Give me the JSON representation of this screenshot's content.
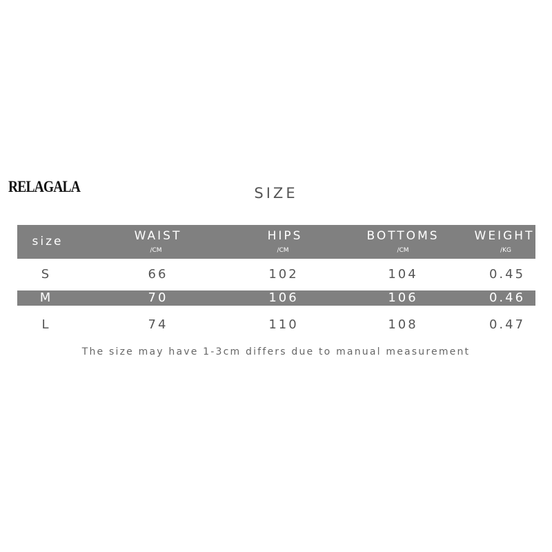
{
  "brand": "RELAGALA",
  "title": "SIZE",
  "columns": [
    {
      "label": "size",
      "unit": ""
    },
    {
      "label": "WAIST",
      "unit": "/CM"
    },
    {
      "label": "HIPS",
      "unit": "/CM"
    },
    {
      "label": "BOTTOMS",
      "unit": "/CM"
    },
    {
      "label": "WEIGHT",
      "unit": "/KG"
    }
  ],
  "rows": [
    [
      "S",
      "66",
      "102",
      "104",
      "0.45"
    ],
    [
      "M",
      "70",
      "106",
      "106",
      "0.46"
    ],
    [
      "L",
      "74",
      "110",
      "108",
      "0.47"
    ]
  ],
  "note": "The size may have 1-3cm differs due to manual measurement",
  "colors": {
    "band": "#808080",
    "text": "#555555"
  }
}
